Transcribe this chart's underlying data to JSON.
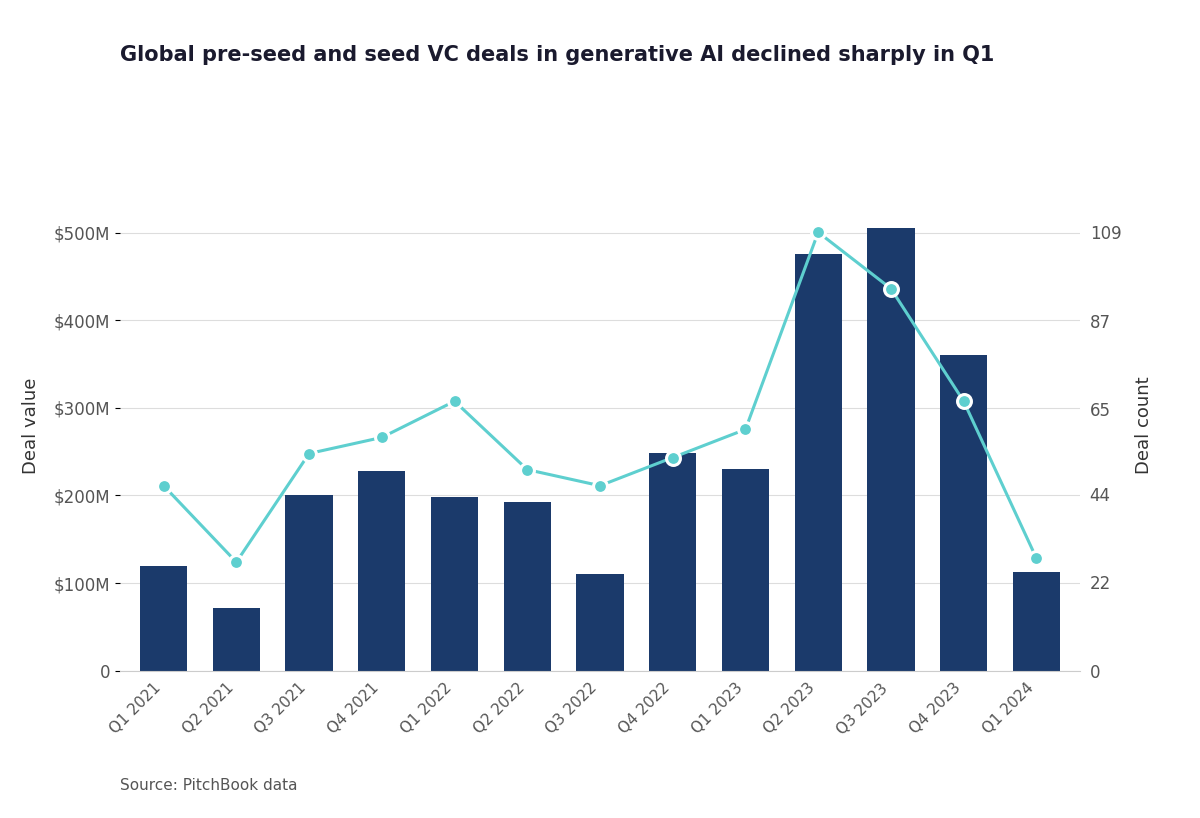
{
  "title": "Global pre-seed and seed VC deals in generative AI declined sharply in Q1",
  "categories": [
    "Q1 2021",
    "Q2 2021",
    "Q3 2021",
    "Q4 2021",
    "Q1 2022",
    "Q2 2022",
    "Q3 2022",
    "Q4 2022",
    "Q1 2023",
    "Q2 2023",
    "Q3 2023",
    "Q4 2023",
    "Q1 2024"
  ],
  "deal_values_M": [
    120,
    72,
    200,
    228,
    198,
    193,
    110,
    248,
    230,
    475,
    505,
    360,
    113
  ],
  "deal_counts": [
    46,
    27,
    54,
    58,
    67,
    50,
    46,
    53,
    60,
    109,
    95,
    67,
    28
  ],
  "bar_color": "#1b3a6b",
  "line_color": "#5ecfcf",
  "ylabel_left": "Deal value",
  "ylabel_right": "Deal count",
  "yticks_left": [
    0,
    100,
    200,
    300,
    400,
    500
  ],
  "ytick_labels_left": [
    "0",
    "$100M",
    "$200M",
    "$300M",
    "$400M",
    "$500M"
  ],
  "yticks_right": [
    0,
    22,
    44,
    65,
    87,
    109
  ],
  "ytick_labels_right": [
    "0",
    "22",
    "44",
    "65",
    "87",
    "109"
  ],
  "ylim_left": [
    0,
    560
  ],
  "ylim_right": [
    0,
    122
  ],
  "source_text": "Source: PitchBook data",
  "background_color": "#ffffff",
  "legend_items": [
    "Deal value",
    "Deal count"
  ],
  "title_color": "#1a1a2e",
  "axis_label_color": "#333333",
  "tick_label_color": "#555555"
}
